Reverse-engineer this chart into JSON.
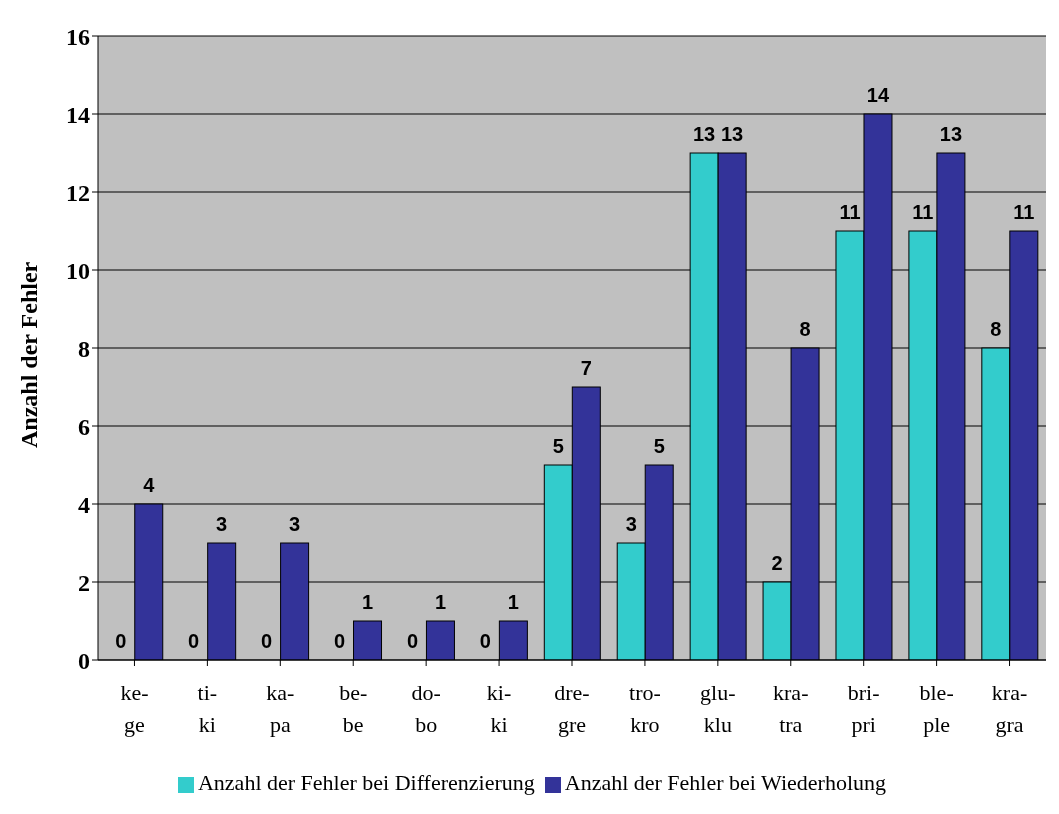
{
  "chart_data": {
    "type": "bar",
    "ylabel": "Anzahl der Fehler",
    "categories": [
      "ke-\nge",
      "ti-\nki",
      "ka-\npa",
      "be-\nbe",
      "do-\nbo",
      "ki-\nki",
      "dre-\ngre",
      "tro-\nkro",
      "glu-\nklu",
      "kra-\ntra",
      "bri-\npri",
      "ble-\nple",
      "kra-\ngra"
    ],
    "series": [
      {
        "name": "Anzahl der Fehler bei Differenzierung",
        "color": "#33cccc",
        "values": [
          0,
          0,
          0,
          0,
          0,
          0,
          5,
          3,
          13,
          2,
          11,
          11,
          8
        ]
      },
      {
        "name": "Anzahl der Fehler bei Wiederholung",
        "color": "#333399",
        "values": [
          4,
          3,
          3,
          1,
          1,
          1,
          7,
          5,
          13,
          8,
          14,
          13,
          11
        ]
      }
    ],
    "ylim": [
      0,
      16
    ],
    "yticks": [
      0,
      2,
      4,
      6,
      8,
      10,
      12,
      14,
      16
    ],
    "grid": "y",
    "legend": "bottom",
    "data_labels": true
  }
}
